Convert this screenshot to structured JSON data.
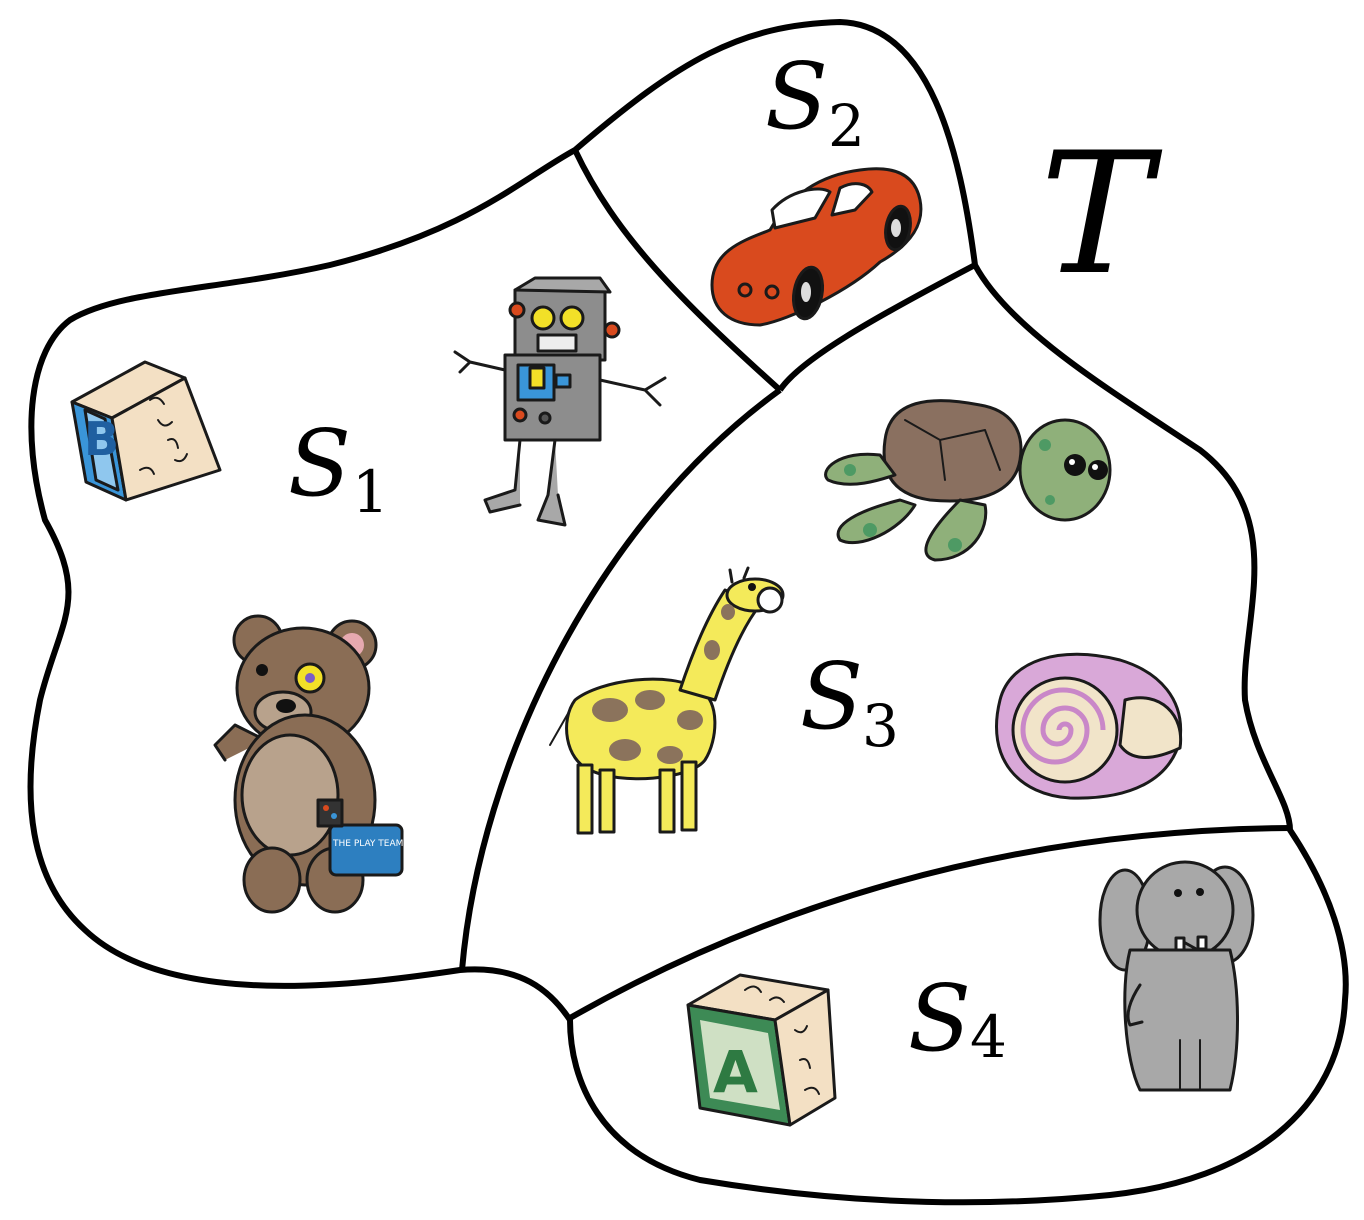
{
  "set_label": "T",
  "subsets": [
    {
      "letter": "S",
      "index": "1"
    },
    {
      "letter": "S",
      "index": "2"
    },
    {
      "letter": "S",
      "index": "3"
    },
    {
      "letter": "S",
      "index": "4"
    }
  ],
  "block_letters": {
    "blue_block": "B",
    "green_block": "A"
  },
  "lunchbox_text": "THE PLAY TEAM",
  "colors": {
    "outline": "#000000",
    "car": "#d94a1e",
    "teddy": "#8a6d55",
    "teddy_belly": "#b8a28c",
    "robot": "#8d8d8d",
    "giraffe": "#f4ea5a",
    "giraffe_spots": "#8b735c",
    "turtle_shell": "#8a7060",
    "turtle_skin": "#8fb07a",
    "turtle_spots": "#4e9a64",
    "shell_pink": "#d9a8d8",
    "shell_cream": "#f1e4c9",
    "elephant": "#a8a8a8",
    "block_b": "#3a95d8",
    "block_a": "#3d8a55",
    "block_face": "#f3e0c4"
  }
}
